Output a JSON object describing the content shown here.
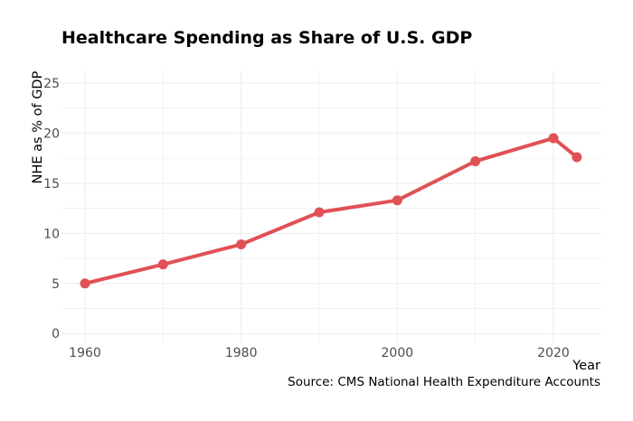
{
  "chart_data": {
    "type": "line",
    "title": "Healthcare Spending as Share of U.S. GDP",
    "caption": "Source: CMS National Health Expenditure Accounts",
    "xlabel": "Year",
    "ylabel": "NHE as % of GDP",
    "x": [
      1960,
      1970,
      1980,
      1990,
      2000,
      2010,
      2020,
      2023
    ],
    "values": [
      5.0,
      6.9,
      8.9,
      12.1,
      13.3,
      17.2,
      19.5,
      17.6
    ],
    "xlim": [
      1958,
      2026
    ],
    "ylim": [
      -0.5,
      26
    ],
    "xticks": [
      1960,
      1980,
      2000,
      2020
    ],
    "yticks": [
      0,
      5,
      10,
      15,
      20,
      25
    ],
    "grid": true,
    "line_color": "#e05155"
  }
}
